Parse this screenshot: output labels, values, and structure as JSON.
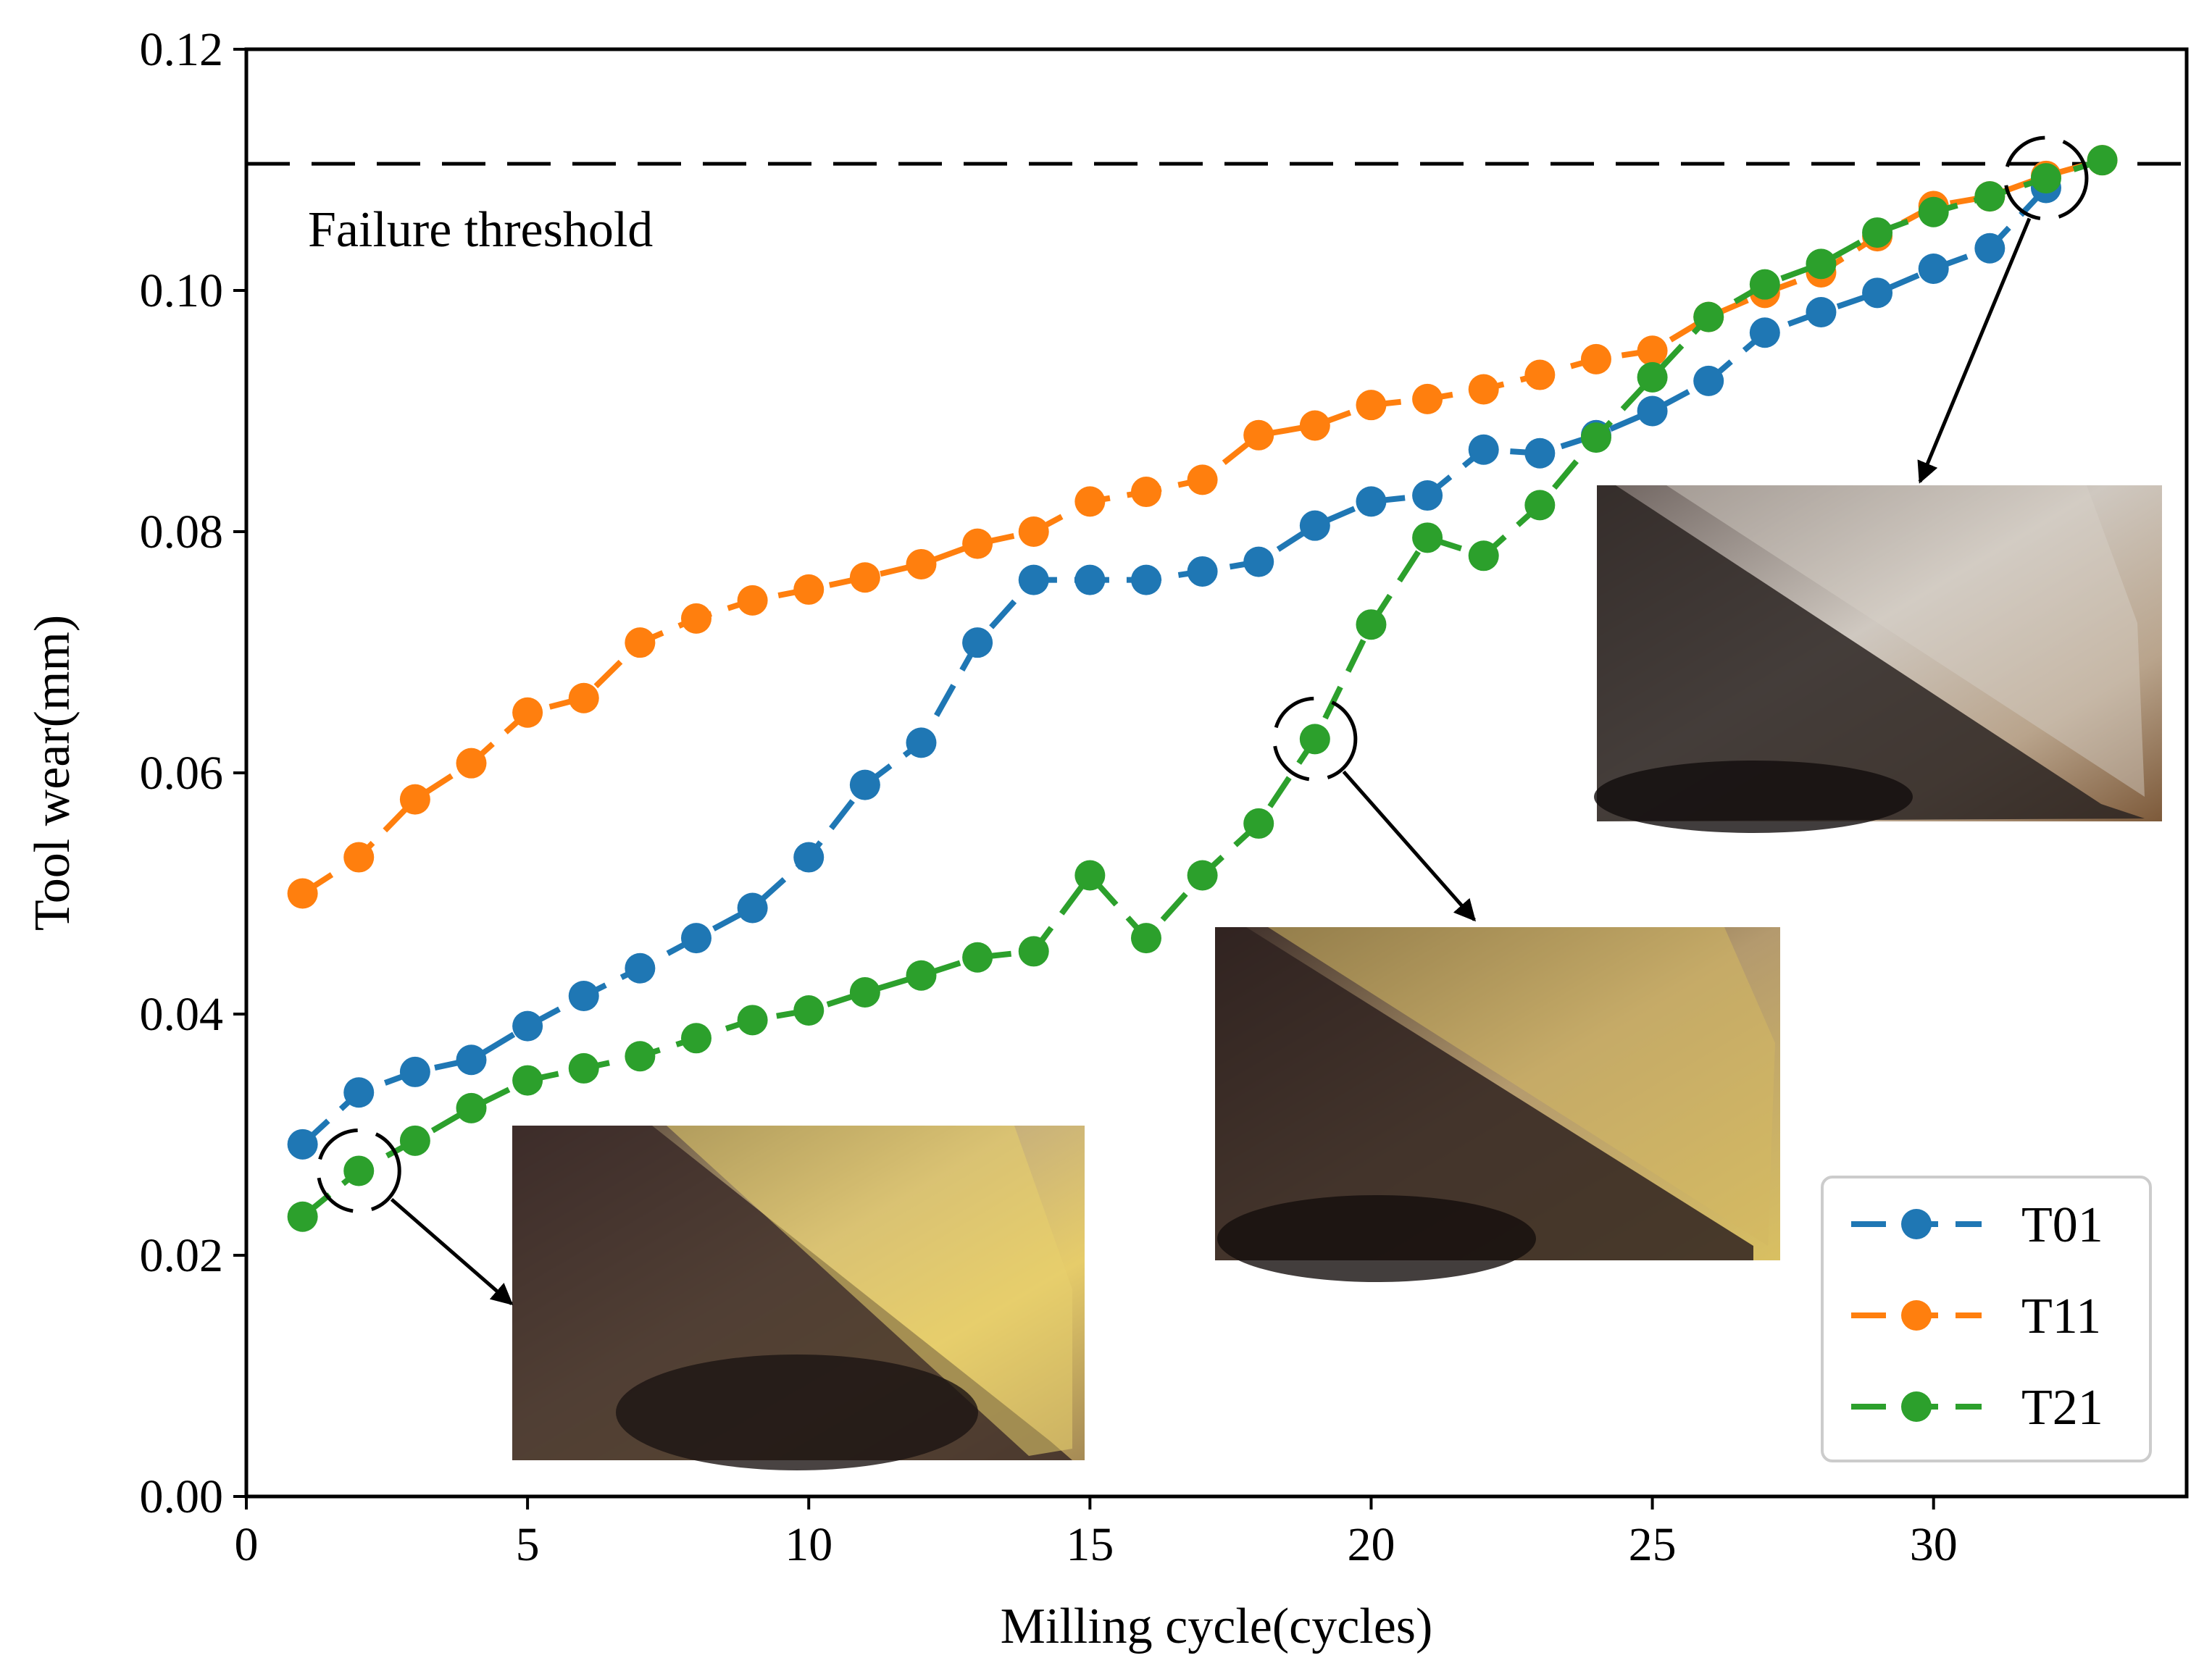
{
  "chart_data": {
    "type": "line",
    "title": "",
    "xlabel": "Milling cycle(cycles)",
    "ylabel": "Tool wear(mm)",
    "xlim": [
      0,
      34.5
    ],
    "ylim": [
      0.0,
      0.12
    ],
    "xticks": [
      0,
      5,
      10,
      15,
      20,
      25,
      30
    ],
    "yticks": [
      0.0,
      0.02,
      0.04,
      0.06,
      0.08,
      0.1,
      0.12
    ],
    "xtick_labels": [
      "0",
      "5",
      "10",
      "15",
      "20",
      "25",
      "30"
    ],
    "ytick_labels": [
      "0.00",
      "0.02",
      "0.04",
      "0.06",
      "0.08",
      "0.10",
      "0.12"
    ],
    "grid": false,
    "legend_position": "bottom-right",
    "threshold": {
      "value": 0.1105,
      "label": "Failure threshold"
    },
    "series": [
      {
        "name": "T01",
        "color": "#1f77b4",
        "x": [
          1,
          2,
          3,
          4,
          5,
          6,
          7,
          8,
          9,
          10,
          11,
          12,
          13,
          14,
          15,
          16,
          17,
          18,
          19,
          20,
          21,
          22,
          23,
          24,
          25,
          26,
          27,
          28,
          29,
          30,
          31,
          32
        ],
        "values": [
          0.0292,
          0.0335,
          0.0352,
          0.0362,
          0.039,
          0.0415,
          0.0438,
          0.0463,
          0.0488,
          0.053,
          0.059,
          0.0625,
          0.0708,
          0.076,
          0.076,
          0.076,
          0.0767,
          0.0775,
          0.0805,
          0.0825,
          0.083,
          0.0868,
          0.0865,
          0.088,
          0.09,
          0.0925,
          0.0965,
          0.0982,
          0.0998,
          0.1018,
          0.1035,
          0.1085
        ]
      },
      {
        "name": "T11",
        "color": "#ff7f0e",
        "x": [
          1,
          2,
          3,
          4,
          5,
          6,
          7,
          8,
          9,
          10,
          11,
          12,
          13,
          14,
          15,
          16,
          17,
          18,
          19,
          20,
          21,
          22,
          23,
          24,
          25,
          26,
          27,
          28,
          29,
          30,
          31,
          32,
          33
        ],
        "values": [
          0.05,
          0.053,
          0.0578,
          0.0608,
          0.065,
          0.0662,
          0.0708,
          0.0728,
          0.0743,
          0.0752,
          0.0762,
          0.0773,
          0.079,
          0.08,
          0.0825,
          0.0833,
          0.0843,
          0.088,
          0.0888,
          0.0905,
          0.091,
          0.0918,
          0.093,
          0.0943,
          0.095,
          0.0978,
          0.0998,
          0.1015,
          0.1045,
          0.107,
          0.1078,
          0.1095,
          0.1108
        ]
      },
      {
        "name": "T21",
        "color": "#2ca02c",
        "x": [
          1,
          2,
          3,
          4,
          5,
          6,
          7,
          8,
          9,
          10,
          11,
          12,
          13,
          14,
          15,
          16,
          17,
          18,
          19,
          20,
          21,
          22,
          23,
          24,
          25,
          26,
          27,
          28,
          29,
          30,
          31,
          32,
          33
        ],
        "values": [
          0.0232,
          0.027,
          0.0295,
          0.0322,
          0.0345,
          0.0355,
          0.0365,
          0.038,
          0.0395,
          0.0403,
          0.0418,
          0.0432,
          0.0447,
          0.0452,
          0.0515,
          0.0463,
          0.0515,
          0.0558,
          0.0628,
          0.0723,
          0.0795,
          0.078,
          0.0822,
          0.0878,
          0.0928,
          0.0978,
          0.1005,
          0.1022,
          0.1048,
          0.1065,
          0.1078,
          0.1093,
          0.1108
        ]
      }
    ],
    "highlighted_points": [
      {
        "series": "T21",
        "x": 2,
        "y": 0.027
      },
      {
        "series": "T21",
        "x": 19,
        "y": 0.0628
      },
      {
        "series": "T21",
        "x": 32,
        "y": 0.1093
      }
    ]
  }
}
